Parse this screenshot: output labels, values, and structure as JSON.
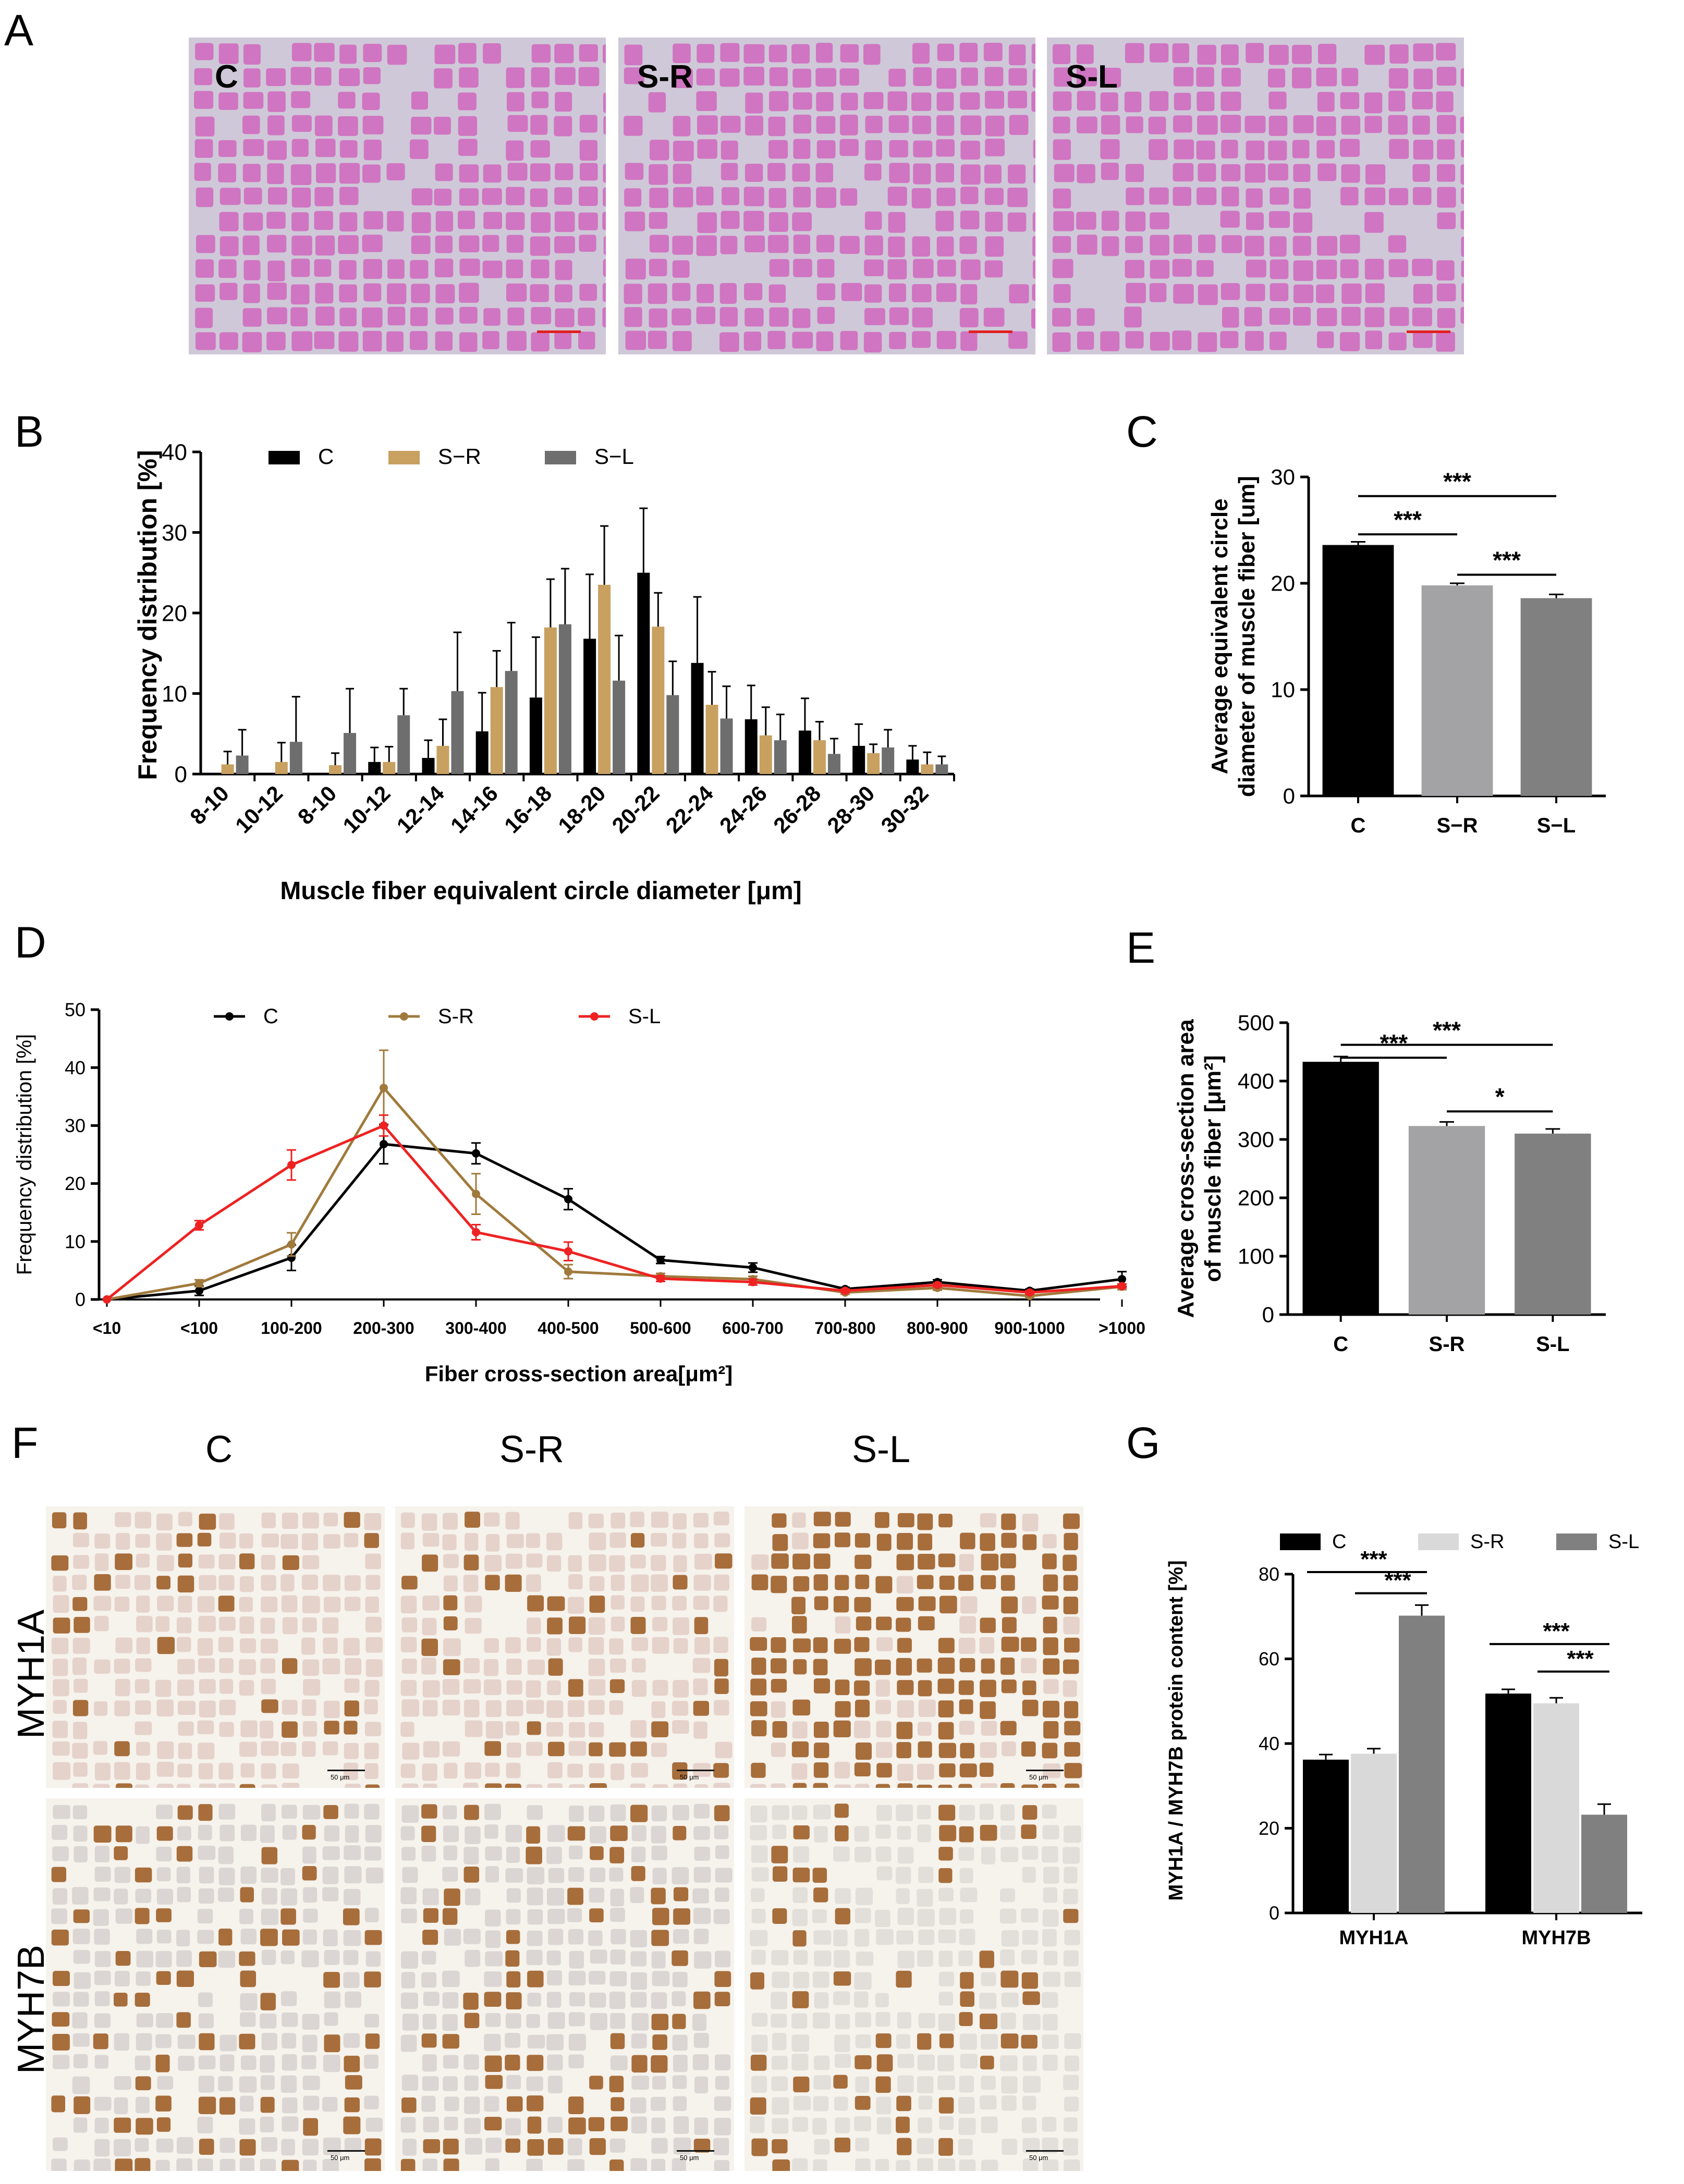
{
  "panels": {
    "A": {
      "letter": "A",
      "images": [
        {
          "label": "C",
          "stain": "he"
        },
        {
          "label": "S-R",
          "stain": "he"
        },
        {
          "label": "S-L",
          "stain": "he"
        }
      ]
    },
    "B": {
      "letter": "B"
    },
    "C": {
      "letter": "C"
    },
    "D": {
      "letter": "D"
    },
    "E": {
      "letter": "E"
    },
    "F": {
      "letter": "F",
      "columns": [
        "C",
        "S-R",
        "S-L"
      ],
      "rows": [
        "MYH1A",
        "MYH7B"
      ],
      "scale_bar_text": "50 μm"
    },
    "G": {
      "letter": "G"
    }
  },
  "colors": {
    "black": "#000000",
    "tan": "#c8a060",
    "gray": "#6e6e6e",
    "light_gray": "#a3a3a5",
    "mid_gray": "#808080",
    "very_light_gray": "#d9d9d9",
    "line_brown": "#a07a3c",
    "line_red": "#ee2222",
    "he_bg": "#cfc8d8",
    "he_fiber": "#d06ec0",
    "ihc_bg": "#f6f2ec",
    "ihc_fiber": "#e3cfc8",
    "ihc_brown": "#a0622a"
  },
  "chart_data": [
    {
      "id": "B",
      "type": "bar",
      "xlabel": "Muscle fiber equivalent circle diameter [μm]",
      "ylabel": "Frequency distribution [%]",
      "ylim": [
        0,
        40
      ],
      "yticks": [
        0,
        10,
        20,
        30,
        40
      ],
      "legend_position": "top",
      "categories": [
        "8-10",
        "10-12",
        "8-10",
        "10-12",
        "12-14",
        "14-16",
        "16-18",
        "18-20",
        "20-22",
        "22-24",
        "24-26",
        "26-28",
        "28-30",
        "30-32"
      ],
      "series": [
        {
          "name": "C",
          "color": "#000000",
          "values": [
            0,
            0,
            0,
            1.5,
            2,
            5.3,
            9.5,
            16.8,
            25,
            13.8,
            6.8,
            5.4,
            3.5,
            1.8
          ],
          "errors": [
            0,
            0,
            0,
            1.8,
            2.2,
            4.8,
            7.5,
            8,
            8,
            8.2,
            4.2,
            4,
            2.7,
            1.7
          ]
        },
        {
          "name": "S−R",
          "color": "#c8a060",
          "values": [
            1.2,
            1.5,
            1.1,
            1.5,
            3.5,
            10.8,
            18.2,
            23.5,
            18.3,
            8.6,
            4.8,
            4.2,
            2.6,
            1.2
          ],
          "errors": [
            1.6,
            2.4,
            1.5,
            1.9,
            3.3,
            4.5,
            6,
            7.3,
            4.2,
            4.1,
            3.5,
            2.3,
            1.1,
            1.5
          ]
        },
        {
          "name": "S−L",
          "color": "#6e6e6e",
          "values": [
            2.3,
            4,
            5.1,
            7.3,
            10.3,
            12.8,
            18.6,
            11.6,
            9.8,
            6.9,
            4.2,
            2.5,
            3.3,
            1.2
          ],
          "errors": [
            3.2,
            5.6,
            5.5,
            3.3,
            7.3,
            6,
            6.9,
            5.6,
            4.2,
            4,
            3.2,
            1.9,
            2.2,
            1
          ]
        }
      ]
    },
    {
      "id": "C",
      "type": "bar",
      "ylabel": "Average equivalent circle diameter of muscle fiber [um]",
      "ylabel_lines": [
        "Average equivalent circle",
        "diameter of muscle fiber [um]"
      ],
      "ylim": [
        0,
        30
      ],
      "yticks": [
        0,
        10,
        20,
        30
      ],
      "categories": [
        "C",
        "S−R",
        "S−L"
      ],
      "values": [
        23.6,
        19.8,
        18.6
      ],
      "errors": [
        0.3,
        0.2,
        0.35
      ],
      "bar_colors": [
        "#000000",
        "#a3a3a5",
        "#808080"
      ],
      "significance": [
        {
          "from": 0,
          "to": 2,
          "label": "***",
          "y": 28.2
        },
        {
          "from": 0,
          "to": 1,
          "label": "***",
          "y": 24.6
        },
        {
          "from": 1,
          "to": 2,
          "label": "***",
          "y": 20.8
        }
      ]
    },
    {
      "id": "D",
      "type": "line",
      "xlabel": "Fiber cross-section area[μm²]",
      "ylabel": "Frequency distribution [%]",
      "ylim": [
        0,
        50
      ],
      "yticks": [
        0,
        10,
        20,
        30,
        40,
        50
      ],
      "legend_position": "top",
      "categories": [
        "<10",
        "<100",
        "100-200",
        "200-300",
        "300-400",
        "400-500",
        "500-600",
        "600-700",
        "700-800",
        "800-900",
        "900-1000",
        ">1000"
      ],
      "series": [
        {
          "name": "C",
          "color": "#000000",
          "values": [
            0,
            1.5,
            7.2,
            26.8,
            25.2,
            17.3,
            6.8,
            5.5,
            1.8,
            3,
            1.5,
            3.5
          ],
          "errors": [
            0,
            0.8,
            2.2,
            3.4,
            1.8,
            1.8,
            0.6,
            0.8,
            0.3,
            0.4,
            0.3,
            1.3
          ]
        },
        {
          "name": "S-R",
          "color": "#a07a3c",
          "values": [
            0,
            2.8,
            9.5,
            36.5,
            18.2,
            4.8,
            4,
            3.5,
            1.2,
            2,
            0.6,
            2.2
          ],
          "errors": [
            0,
            0.6,
            2,
            6.5,
            3.5,
            1.2,
            0.5,
            0.5,
            0.3,
            0.4,
            0.2,
            0.5
          ]
        },
        {
          "name": "S-L",
          "color": "#ee2222",
          "values": [
            0,
            12.8,
            23.2,
            30,
            11.6,
            8.3,
            3.6,
            3,
            1.5,
            2.5,
            1.2,
            2.3
          ],
          "errors": [
            0,
            0.8,
            2.6,
            1.8,
            1.3,
            1.6,
            0.5,
            0.5,
            0.3,
            0.3,
            0.3,
            0.3
          ]
        }
      ]
    },
    {
      "id": "E",
      "type": "bar",
      "ylabel": "Average cross-section area of muscle fiber [μm²]",
      "ylabel_lines": [
        "Average  cross-section area",
        "of muscle fiber [μm²]"
      ],
      "ylim": [
        0,
        500
      ],
      "yticks": [
        0,
        100,
        200,
        300,
        400,
        500
      ],
      "categories": [
        "C",
        "S-R",
        "S-L"
      ],
      "values": [
        433,
        323,
        310
      ],
      "errors": [
        9,
        7,
        8
      ],
      "bar_colors": [
        "#000000",
        "#a3a3a5",
        "#808080"
      ],
      "significance": [
        {
          "from": 0,
          "to": 2,
          "label": "***",
          "y": 462
        },
        {
          "from": 0,
          "to": 1,
          "label": "***",
          "y": 440
        },
        {
          "from": 1,
          "to": 2,
          "label": "*",
          "y": 348
        }
      ]
    },
    {
      "id": "G",
      "type": "bar",
      "ylabel": "MYH1A / MYH7B protein content [%]",
      "ylim": [
        0,
        80
      ],
      "yticks": [
        0,
        20,
        40,
        60,
        80
      ],
      "legend_position": "top",
      "categories": [
        "MYH1A",
        "MYH7B"
      ],
      "series": [
        {
          "name": "C",
          "color": "#000000",
          "values": [
            36.2,
            51.8
          ],
          "errors": [
            1.2,
            1
          ]
        },
        {
          "name": "S-R",
          "color": "#d9d9d9",
          "values": [
            37.6,
            49.5
          ],
          "errors": [
            1.2,
            1.3
          ]
        },
        {
          "name": "S-L",
          "color": "#808080",
          "values": [
            70.2,
            23.2
          ],
          "errors": [
            2.5,
            2.5
          ]
        }
      ],
      "significance": [
        {
          "group": 0,
          "from": 0,
          "to": 2,
          "label": "***",
          "y": 80.5
        },
        {
          "group": 0,
          "from": 1,
          "to": 2,
          "label": "***",
          "y": 75.5
        },
        {
          "group": 1,
          "from": 0,
          "to": 2,
          "label": "***",
          "y": 63.5
        },
        {
          "group": 1,
          "from": 1,
          "to": 2,
          "label": "***",
          "y": 57
        }
      ]
    }
  ]
}
